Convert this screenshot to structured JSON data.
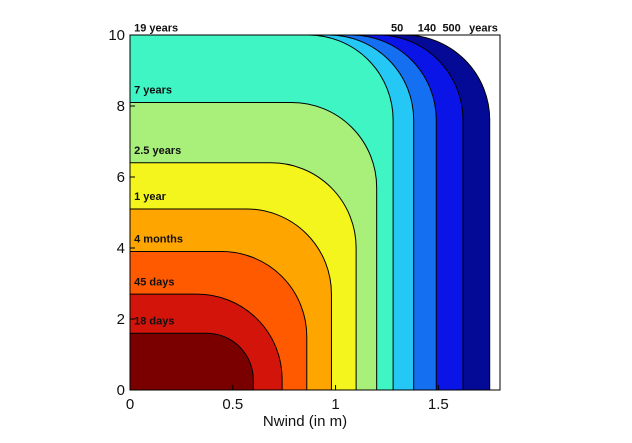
{
  "chart_data": {
    "type": "contour",
    "xlabel": "Nwind (in m)",
    "ylabel": "",
    "xlim": [
      0,
      1.8
    ],
    "ylim": [
      0,
      10
    ],
    "x_ticks": [
      0,
      0.5,
      1,
      1.5
    ],
    "x_tick_labels": [
      "0",
      "0.5",
      "1",
      "1.5"
    ],
    "y_ticks": [
      0,
      2,
      4,
      6,
      8,
      10
    ],
    "y_tick_labels": [
      "0",
      "2",
      "4",
      "6",
      "8",
      "10"
    ],
    "grid": false,
    "levels": [
      {
        "label": "18 days",
        "color": "#7a0000",
        "x_extent": 0.6,
        "y_extent": 1.6,
        "label_x": 0.02,
        "label_y": 1.85
      },
      {
        "label": "45 days",
        "color": "#d2140a",
        "x_extent": 0.74,
        "y_extent": 2.7,
        "label_x": 0.02,
        "label_y": 2.95
      },
      {
        "label": "4 months",
        "color": "#ff5a00",
        "x_extent": 0.86,
        "y_extent": 3.9,
        "label_x": 0.02,
        "label_y": 4.15
      },
      {
        "label": "1 year",
        "color": "#ffa500",
        "x_extent": 0.98,
        "y_extent": 5.1,
        "label_x": 0.02,
        "label_y": 5.35
      },
      {
        "label": "2.5 years",
        "color": "#f5f51e",
        "x_extent": 1.1,
        "y_extent": 6.4,
        "label_x": 0.02,
        "label_y": 6.65
      },
      {
        "label": "7 years",
        "color": "#a8f07a",
        "x_extent": 1.2,
        "y_extent": 8.1,
        "label_x": 0.02,
        "label_y": 8.35
      },
      {
        "label": "19 years",
        "color": "#3ff5c4",
        "x_extent": 1.28,
        "y_extent": 10.0,
        "label_x": 0.02,
        "label_y": 10.1
      },
      {
        "label": "50",
        "color": "#25c8f5",
        "x_extent": 1.38,
        "y_extent": 10.0,
        "label_x": 1.27,
        "label_y": 10.1
      },
      {
        "label": "140",
        "color": "#1470f0",
        "x_extent": 1.49,
        "y_extent": 10.0,
        "label_x": 1.4,
        "label_y": 10.1
      },
      {
        "label": "500",
        "color": "#0a14e6",
        "x_extent": 1.62,
        "y_extent": 10.0,
        "label_x": 1.52,
        "label_y": 10.1
      },
      {
        "label": "years",
        "color": "#050a96",
        "x_extent": 1.75,
        "y_extent": 10.0,
        "label_x": 1.65,
        "label_y": 10.1
      }
    ]
  }
}
